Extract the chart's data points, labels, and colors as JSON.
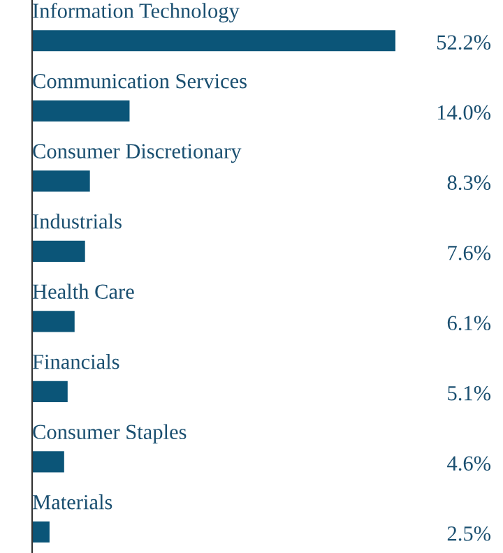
{
  "chart_data": {
    "type": "bar",
    "orientation": "horizontal",
    "categories": [
      "Information Technology",
      "Communication Services",
      "Consumer Discretionary",
      "Industrials",
      "Health Care",
      "Financials",
      "Consumer Staples",
      "Materials"
    ],
    "values": [
      52.2,
      14.0,
      8.3,
      7.6,
      6.1,
      5.1,
      4.6,
      2.5
    ],
    "value_labels": [
      "52.2%",
      "14.0%",
      "8.3%",
      "7.6%",
      "6.1%",
      "5.1%",
      "4.6%",
      "2.5%"
    ],
    "color": "#0b5578"
  }
}
